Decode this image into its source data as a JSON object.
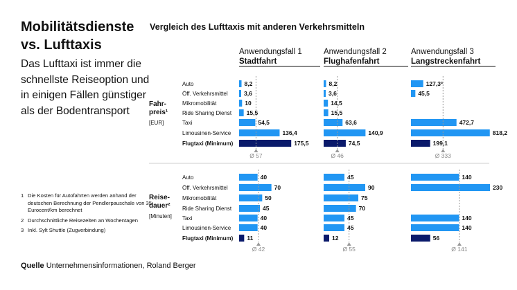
{
  "left_panel": {
    "title_lines": [
      "Mobilitätsdienste",
      "vs. Lufttaxis"
    ],
    "subtitle": "Das Lufttaxi ist immer die schnellste Reiseoption und in einigen Fällen günstiger als der Bodentransport"
  },
  "footnotes": [
    {
      "num": "1",
      "text": "Die Kosten für Autofahrten werden anhand der deutschen Berechnung der Pendlerpauschale von 35 Eurocent/km berechnet"
    },
    {
      "num": "2",
      "text": "Durchschnittliche Reisezeiten an Wochentagen"
    },
    {
      "num": "3",
      "text": "Inkl. Sylt Shuttle (Zugverbindung)"
    }
  ],
  "source": {
    "label": "Quelle",
    "text": "Unternehmensinformationen, Roland Berger"
  },
  "colors": {
    "bar": "#2196f3",
    "bar_highlight": "#0a1a6b",
    "avg_line": "#999999",
    "text": "#111111"
  },
  "chart_data": {
    "type": "bar",
    "orientation": "horizontal",
    "title": "Vergleich des Lufttaxis mit anderen Verkehrsmitteln",
    "categories": [
      "Auto",
      "Öff. Verkehrsmittel",
      "Mikromobilität",
      "Ride Sharing Dienst",
      "Taxi",
      "Limousinen-Service",
      "Flugtaxi (Minimum)"
    ],
    "highlight_category": "Flugtaxi (Minimum)",
    "use_cases": [
      {
        "line1": "Anwendungsfall 1",
        "line2": "Stadtfahrt"
      },
      {
        "line1": "Anwendungsfall 2",
        "line2": "Flughafenfahrt"
      },
      {
        "line1": "Anwendungsfall 3",
        "line2": "Langstreckenfahrt"
      }
    ],
    "panels": [
      {
        "name": "price",
        "label_lines": [
          "Fahr-",
          "preis¹",
          "[EUR]"
        ],
        "xlim": [
          0,
          820
        ],
        "values": [
          [
            8.2,
            3.6,
            10,
            15.5,
            54.5,
            136.4,
            175.5
          ],
          [
            8.2,
            3.6,
            14.5,
            15.5,
            63.6,
            140.9,
            74.5
          ],
          [
            127.3,
            45.5,
            null,
            null,
            472.7,
            818.2,
            199.1
          ]
        ],
        "value_labels": [
          [
            "8,2",
            "3,6",
            "10",
            "15,5",
            "54,5",
            "136,4",
            "175,5"
          ],
          [
            "8,2",
            "3,6",
            "14,5",
            "15,5",
            "63,6",
            "140,9",
            "74,5"
          ],
          [
            "127,3³",
            "45,5",
            "",
            "",
            "472,7",
            "818,2",
            "199,1"
          ]
        ],
        "averages": [
          57,
          46,
          333
        ],
        "average_labels": [
          "Ø 57",
          "Ø 46",
          "Ø 333"
        ]
      },
      {
        "name": "time",
        "label_lines": [
          "Reise-",
          "dauer²",
          "[Minuten]"
        ],
        "xlim": [
          0,
          230
        ],
        "values": [
          [
            40,
            70,
            50,
            45,
            40,
            40,
            11
          ],
          [
            45,
            90,
            75,
            70,
            45,
            45,
            12
          ],
          [
            140,
            230,
            null,
            null,
            140,
            140,
            56
          ]
        ],
        "value_labels": [
          [
            "40",
            "70",
            "50",
            "45",
            "40",
            "40",
            "11"
          ],
          [
            "45",
            "90",
            "75",
            "70",
            "45",
            "45",
            "12"
          ],
          [
            "140",
            "230",
            "",
            "",
            "140",
            "140",
            "56"
          ]
        ],
        "averages": [
          42,
          55,
          141
        ],
        "average_labels": [
          "Ø 42",
          "Ø 55",
          "Ø 141"
        ]
      }
    ]
  }
}
